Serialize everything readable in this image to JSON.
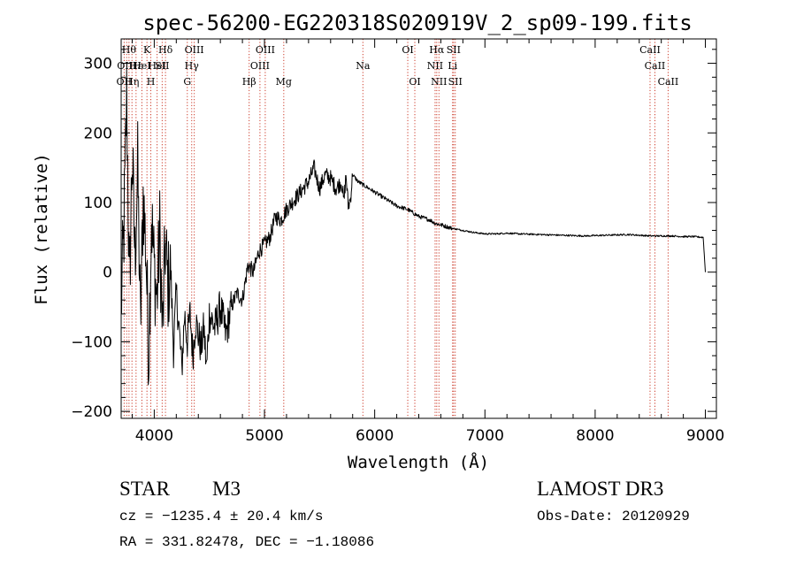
{
  "chart_data": {
    "type": "line",
    "title": "spec-56200-EG220318S020919V_2_sp09-199.fits",
    "xlabel": "Wavelength (Å)",
    "ylabel": "Flux (relative)",
    "xlim": [
      3700,
      9100
    ],
    "ylim": [
      -210,
      335
    ],
    "xticks": [
      4000,
      5000,
      6000,
      7000,
      8000,
      9000
    ],
    "yticks": [
      -200,
      -100,
      0,
      100,
      200,
      300
    ],
    "xtick_labels": [
      "4000",
      "5000",
      "6000",
      "7000",
      "8000",
      "9000"
    ],
    "ytick_labels": [
      "−200",
      "−100",
      "0",
      "100",
      "200",
      "300"
    ],
    "series": [
      {
        "name": "spectrum",
        "color": "#000000",
        "x": [
          3700,
          3725,
          3750,
          3775,
          3800,
          3825,
          3850,
          3875,
          3900,
          3925,
          3950,
          3975,
          4000,
          4025,
          4050,
          4075,
          4100,
          4125,
          4150,
          4175,
          4200,
          4225,
          4250,
          4275,
          4300,
          4325,
          4350,
          4375,
          4400,
          4425,
          4450,
          4475,
          4500,
          4550,
          4600,
          4650,
          4700,
          4750,
          4800,
          4850,
          4900,
          4950,
          5000,
          5050,
          5100,
          5150,
          5200,
          5250,
          5300,
          5350,
          5400,
          5450,
          5500,
          5550,
          5600,
          5650,
          5700,
          5720,
          5740,
          5760,
          5780,
          5800,
          5850,
          5900,
          6000,
          6100,
          6200,
          6300,
          6400,
          6500,
          6550,
          6600,
          6700,
          6800,
          6900,
          7000,
          7100,
          7200,
          7300,
          7500,
          7700,
          7900,
          8100,
          8300,
          8400,
          8500,
          8600,
          8700,
          8800,
          8900,
          8980,
          8990,
          9000
        ],
        "y": [
          -50,
          60,
          250,
          -30,
          170,
          20,
          150,
          -80,
          110,
          30,
          -120,
          80,
          5,
          -40,
          60,
          -90,
          40,
          -20,
          0,
          -110,
          -30,
          -80,
          -140,
          -60,
          -100,
          -60,
          -120,
          -70,
          -90,
          -110,
          -80,
          -140,
          -60,
          -80,
          -50,
          -90,
          -50,
          -30,
          -40,
          10,
          0,
          30,
          40,
          50,
          80,
          75,
          90,
          100,
          110,
          120,
          130,
          150,
          120,
          140,
          135,
          120,
          130,
          100,
          140,
          95,
          105,
          140,
          130,
          125,
          115,
          105,
          95,
          90,
          80,
          75,
          70,
          68,
          63,
          60,
          57,
          55,
          55,
          56,
          55,
          54,
          53,
          52,
          53,
          54,
          53,
          52,
          52,
          52,
          51,
          51,
          50,
          25,
          0
        ]
      }
    ],
    "line_markers": [
      {
        "w": 3727,
        "label": "OII",
        "row": 2
      },
      {
        "w": 3750,
        "label": "OIII",
        "row": 1
      },
      {
        "w": 3771,
        "label": "Hθ",
        "row": 0
      },
      {
        "w": 3798,
        "label": "Hη",
        "row": 2
      },
      {
        "w": 3835,
        "label": "Hε",
        "row": 1
      },
      {
        "w": 3888,
        "label": "HeI",
        "row": 1
      },
      {
        "w": 3934,
        "label": "K",
        "row": 0
      },
      {
        "w": 3969,
        "label": "H",
        "row": 2
      },
      {
        "w": 4026,
        "label": "HeI",
        "row": 1
      },
      {
        "w": 4072,
        "label": "SII",
        "row": 1
      },
      {
        "w": 4102,
        "label": "Hδ",
        "row": 0
      },
      {
        "w": 4300,
        "label": "G",
        "row": 2
      },
      {
        "w": 4340,
        "label": "Hγ",
        "row": 1
      },
      {
        "w": 4363,
        "label": "OIII",
        "row": 0
      },
      {
        "w": 4861,
        "label": "Hβ",
        "row": 2
      },
      {
        "w": 4959,
        "label": "OIII",
        "row": 1
      },
      {
        "w": 5007,
        "label": "OIII",
        "row": 0
      },
      {
        "w": 5175,
        "label": "Mg",
        "row": 2
      },
      {
        "w": 5893,
        "label": "Na",
        "row": 1
      },
      {
        "w": 6300,
        "label": "OI",
        "row": 0
      },
      {
        "w": 6364,
        "label": "OI",
        "row": 2
      },
      {
        "w": 6548,
        "label": "NII",
        "row": 1
      },
      {
        "w": 6563,
        "label": "Hα",
        "row": 0
      },
      {
        "w": 6583,
        "label": "NII",
        "row": 2
      },
      {
        "w": 6707,
        "label": "Li",
        "row": 1
      },
      {
        "w": 6716,
        "label": "SII",
        "row": 0
      },
      {
        "w": 6731,
        "label": "SII",
        "row": 2
      },
      {
        "w": 8498,
        "label": "CaII",
        "row": 0
      },
      {
        "w": 8542,
        "label": "CaII",
        "row": 1
      },
      {
        "w": 8662,
        "label": "CaII",
        "row": 2
      }
    ],
    "marker_color": "#cc3b2a"
  },
  "info": {
    "object_class": "STAR",
    "subclass": "M3",
    "survey": "LAMOST DR3",
    "cz": "cz = −1235.4 ± 20.4 km/s",
    "obs_date": "Obs-Date: 20120929",
    "coords": "RA = 331.82478, DEC =  −1.18086"
  }
}
